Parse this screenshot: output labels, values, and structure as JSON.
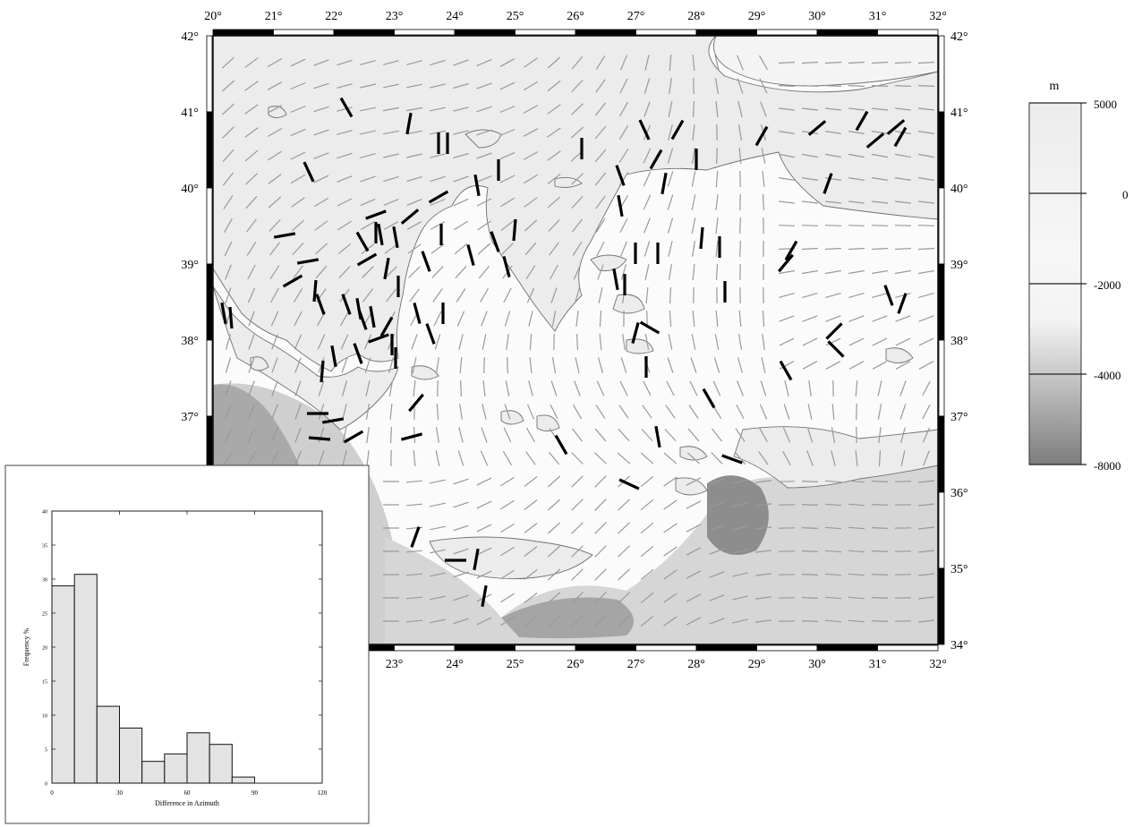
{
  "map": {
    "lon_labels": [
      "20°",
      "21°",
      "22°",
      "23°",
      "24°",
      "25°",
      "26°",
      "27°",
      "28°",
      "29°",
      "30°",
      "31°",
      "32°"
    ],
    "lat_labels": [
      "42°",
      "41°",
      "40°",
      "39°",
      "38°",
      "37°",
      "36°",
      "35°",
      "34°"
    ],
    "extent": {
      "lon": [
        20,
        32
      ],
      "lat": [
        34,
        42
      ]
    },
    "colors": {
      "land": "#ececec",
      "sea": "#fbfbfb",
      "deep": "#8a8a8a",
      "coast": "#707070",
      "thin_bar": "#9a9a9a",
      "thick_bar": "#000000"
    }
  },
  "colorbar": {
    "unit": "m",
    "ticks": [
      "5000",
      "0",
      "-2000",
      "-4000",
      "-8000"
    ]
  },
  "histogram": {
    "xlabel": "Difference in Azimuth",
    "ylabel": "Frequency %",
    "xticks": [
      "0",
      "30",
      "60",
      "90",
      "120"
    ],
    "yticks": [
      "0",
      "5",
      "10",
      "15",
      "20",
      "25",
      "30",
      "35",
      "40"
    ]
  },
  "chart_data": {
    "type": "bar",
    "title": "",
    "xlabel": "Difference in Azimuth",
    "ylabel": "Frequency %",
    "bin_width": 10,
    "categories": [
      "0-10",
      "10-20",
      "20-30",
      "30-40",
      "40-50",
      "50-60",
      "60-70",
      "70-80",
      "80-90"
    ],
    "values": [
      29,
      30.7,
      11.3,
      8.1,
      3.2,
      4.3,
      7.4,
      5.7,
      0.9
    ],
    "xlim": [
      0,
      120
    ],
    "ylim": [
      0,
      40
    ],
    "bar_color": "#e3e3e3"
  }
}
